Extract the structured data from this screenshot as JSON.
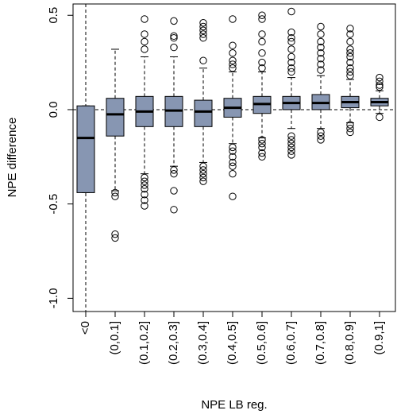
{
  "chart_data": {
    "type": "boxplot",
    "x_label": "NPE LB reg.",
    "y_label": "NPE difference",
    "categories": [
      "<0",
      "(0,0.1]",
      "(0.1,0.2]",
      "(0.2,0.3]",
      "(0.3,0.4]",
      "(0.4,0.5]",
      "(0.5,0.6]",
      "(0.6,0.7]",
      "(0.7,0.8]",
      "(0.8,0.9]",
      "(0.9,1]"
    ],
    "color": "#8796b2",
    "ylim": [
      -1.07,
      0.56
    ],
    "yticks": [
      0.5,
      {
        "value": 0,
        "label": "0.0"
      },
      -0.5,
      {
        "value": -1,
        "label": "-1.0"
      }
    ],
    "hline": 0,
    "boxes": [
      {
        "whisker_low": -0.44,
        "q1": -0.44,
        "median": -0.15,
        "q3": 0.02,
        "whisker_high": 0.02,
        "outliers": []
      },
      {
        "whisker_low": -0.43,
        "q1": -0.14,
        "median": -0.025,
        "q3": 0.06,
        "whisker_high": 0.32,
        "outliers": [
          -0.44,
          -0.46,
          -0.66,
          -0.68
        ]
      },
      {
        "whisker_low": -0.34,
        "q1": -0.09,
        "median": -0.01,
        "q3": 0.07,
        "whisker_high": 0.28,
        "outliers": [
          0.32,
          0.36,
          0.4,
          0.48,
          -0.36,
          -0.38,
          -0.4,
          -0.42,
          -0.45,
          -0.48,
          -0.51
        ]
      },
      {
        "whisker_low": -0.3,
        "q1": -0.09,
        "median": -0.005,
        "q3": 0.07,
        "whisker_high": 0.28,
        "outliers": [
          0.33,
          0.38,
          0.39,
          0.47,
          -0.32,
          -0.34,
          -0.43,
          -0.53
        ]
      },
      {
        "whisker_low": -0.28,
        "q1": -0.09,
        "median": -0.01,
        "q3": 0.05,
        "whisker_high": 0.22,
        "outliers": [
          0.26,
          0.38,
          0.4,
          0.42,
          0.44,
          0.46,
          -0.3,
          -0.32,
          -0.34,
          -0.36,
          -0.38
        ]
      },
      {
        "whisker_low": -0.18,
        "q1": -0.04,
        "median": 0.01,
        "q3": 0.06,
        "whisker_high": 0.2,
        "outliers": [
          0.22,
          0.24,
          0.26,
          0.3,
          0.34,
          0.48,
          -0.2,
          -0.22,
          -0.25,
          -0.28,
          -0.3,
          -0.34,
          -0.46
        ]
      },
      {
        "whisker_low": -0.15,
        "q1": -0.02,
        "median": 0.03,
        "q3": 0.07,
        "whisker_high": 0.2,
        "outliers": [
          0.22,
          0.25,
          0.3,
          0.36,
          0.4,
          0.48,
          0.5,
          -0.16,
          -0.18,
          -0.2,
          -0.23,
          -0.25
        ]
      },
      {
        "whisker_low": -0.1,
        "q1": 0.0,
        "median": 0.035,
        "q3": 0.07,
        "whisker_high": 0.17,
        "outliers": [
          0.2,
          0.22,
          0.25,
          0.28,
          0.32,
          0.36,
          0.38,
          0.41,
          0.52,
          -0.14,
          -0.16,
          -0.18,
          -0.2,
          -0.22,
          -0.24
        ]
      },
      {
        "whisker_low": -0.1,
        "q1": 0.0,
        "median": 0.035,
        "q3": 0.08,
        "whisker_high": 0.18,
        "outliers": [
          0.21,
          0.24,
          0.27,
          0.3,
          0.33,
          0.36,
          0.4,
          0.44,
          -0.12,
          -0.14,
          -0.16
        ]
      },
      {
        "whisker_low": -0.07,
        "q1": 0.01,
        "median": 0.04,
        "q3": 0.07,
        "whisker_high": 0.16,
        "outliers": [
          0.18,
          0.2,
          0.22,
          0.25,
          0.28,
          0.3,
          0.32,
          0.36,
          0.4,
          0.43,
          -0.08,
          -0.1,
          -0.12
        ]
      },
      {
        "whisker_low": -0.02,
        "q1": 0.02,
        "median": 0.04,
        "q3": 0.06,
        "whisker_high": 0.1,
        "outliers": [
          0.12,
          0.13,
          0.15,
          0.17,
          -0.04
        ]
      }
    ]
  }
}
